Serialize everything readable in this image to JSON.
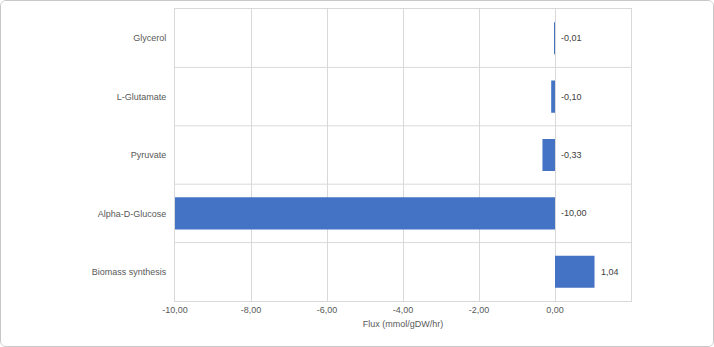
{
  "chart_data": {
    "type": "bar",
    "orientation": "horizontal",
    "x_label": "Flux (mmol/gDW/hr)",
    "categories": [
      "Glycerol",
      "L-Glutamate",
      "Pyruvate",
      "Alpha-D-Glucose",
      "Biomass synthesis"
    ],
    "values": [
      -0.01,
      -0.1,
      -0.33,
      -10.0,
      1.04
    ],
    "value_labels": [
      "-0,01",
      "-0,10",
      "-0,33",
      "-10,00",
      "1,04"
    ],
    "color": "#4472c4",
    "xlim": [
      -10,
      2
    ],
    "xticks": [
      {
        "value": -10,
        "label": "-10,00"
      },
      {
        "value": -8,
        "label": "-8,00"
      },
      {
        "value": -6,
        "label": "-6,00"
      },
      {
        "value": -4,
        "label": "-4,00"
      },
      {
        "value": -2,
        "label": "-2,00"
      },
      {
        "value": 0,
        "label": "0,00"
      }
    ],
    "grid": true,
    "data_labels": true
  }
}
